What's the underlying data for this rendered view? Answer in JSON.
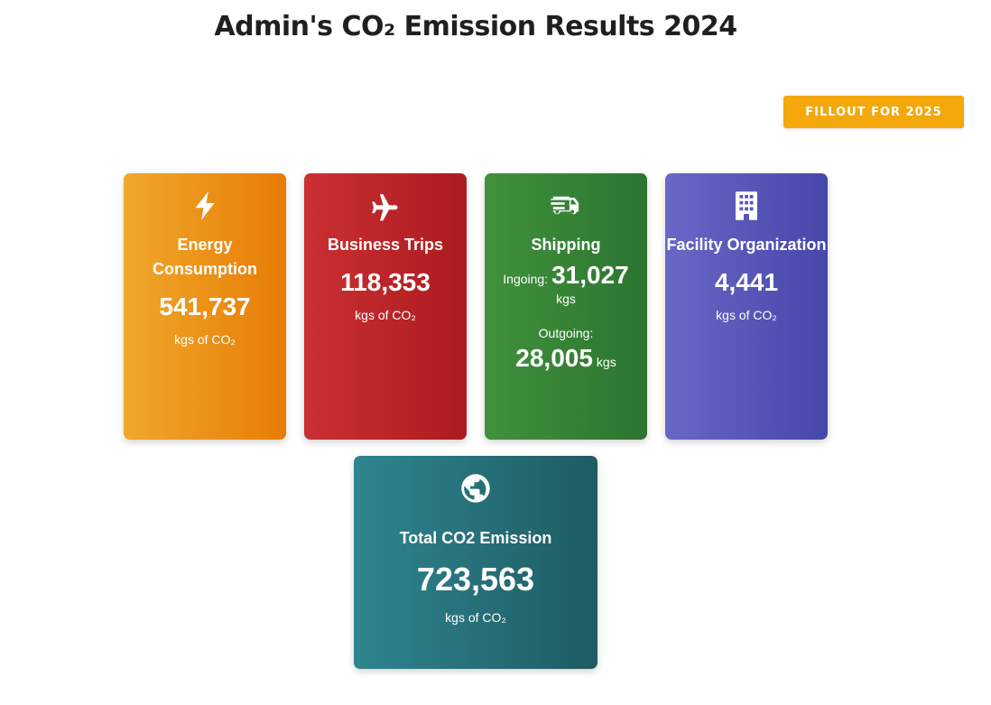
{
  "page": {
    "title": "Admin's CO₂ Emission Results 2024",
    "fill_button": "FILLOUT FOR 2025"
  },
  "colors": {
    "button": "#f5a80c",
    "energy": "#e87c05",
    "trips": "#ac1b1e",
    "shipping": "#2b7530",
    "facility": "#4746aa",
    "total": "#1f5b62"
  },
  "cards": {
    "energy": {
      "icon": "bolt-icon",
      "label": "Energy Consumption",
      "value": "541,737",
      "unit": "kgs of CO₂"
    },
    "trips": {
      "icon": "plane-icon",
      "label": "Business Trips",
      "value": "118,353",
      "unit": "kgs of CO₂"
    },
    "shipping": {
      "icon": "truck-icon",
      "label": "Shipping",
      "ingoing_label": "Ingoing:",
      "ingoing_value": "31,027",
      "ingoing_unit": "kgs",
      "outgoing_label": "Outgoing:",
      "outgoing_value": "28,005",
      "outgoing_unit": "kgs"
    },
    "facility": {
      "icon": "building-icon",
      "label": "Facility Organization",
      "value": "4,441",
      "unit": "kgs of CO₂"
    },
    "total": {
      "icon": "globe-icon",
      "label": "Total CO2 Emission",
      "value": "723,563",
      "unit": "kgs of CO₂"
    }
  }
}
